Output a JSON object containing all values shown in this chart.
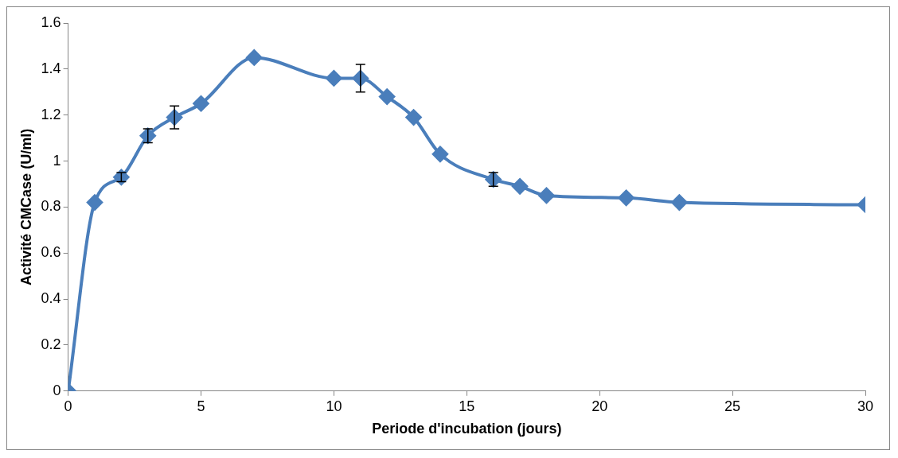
{
  "chart_data": {
    "type": "line",
    "xlabel": "Periode d'incubation (jours)",
    "ylabel": "Activité CMCase (U/ml)",
    "x": [
      0,
      1,
      2,
      3,
      4,
      5,
      7,
      10,
      11,
      12,
      13,
      14,
      16,
      17,
      18,
      21,
      23,
      30
    ],
    "series": [
      {
        "color": "#4a7ebb",
        "values": [
          0,
          0.82,
          0.93,
          1.11,
          1.19,
          1.25,
          1.45,
          1.36,
          1.36,
          1.28,
          1.19,
          1.03,
          0.92,
          0.89,
          0.85,
          0.84,
          0.82,
          0.81
        ],
        "errors": [
          null,
          null,
          0.02,
          0.03,
          0.05,
          null,
          null,
          null,
          0.06,
          null,
          null,
          null,
          0.03,
          null,
          null,
          null,
          null,
          null
        ]
      }
    ],
    "xlim": [
      0,
      30
    ],
    "xticks": [
      0,
      5,
      10,
      15,
      20,
      25,
      30
    ],
    "ylim": [
      0,
      1.6
    ],
    "yticks": [
      0,
      0.2,
      0.4,
      0.6,
      0.8,
      1,
      1.2,
      1.4,
      1.6
    ],
    "grid": false,
    "legend": false,
    "marker": "diamond",
    "line_style": "solid"
  }
}
